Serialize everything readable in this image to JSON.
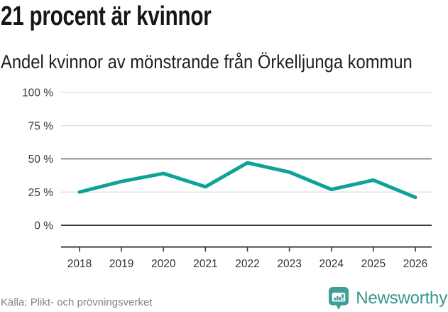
{
  "chart_data": {
    "type": "line",
    "title": "21 procent är kvinnor",
    "subtitle": "Andel kvinnor av mönstrande från Örkelljunga kommun",
    "x": [
      "2018",
      "2019",
      "2020",
      "2021",
      "2022",
      "2023",
      "2024",
      "2025",
      "2026"
    ],
    "series": [
      {
        "name": "Andel kvinnor av mönstrande",
        "values": [
          25,
          33,
          39,
          29,
          47,
          40,
          27,
          34,
          21
        ]
      }
    ],
    "unit": "%",
    "ylim": [
      0,
      100
    ],
    "yticks": [
      {
        "value": 0,
        "label": "0 %"
      },
      {
        "value": 25,
        "label": "25 %"
      },
      {
        "value": 50,
        "label": "50 %"
      },
      {
        "value": 75,
        "label": "75 %"
      },
      {
        "value": 100,
        "label": "100 %"
      }
    ],
    "grid": "horizontal",
    "legend": "none",
    "line_color": "#0fa296"
  },
  "footer": {
    "source": "Källa: Plikt- och prövningsverket",
    "brand": "Newsworthy"
  },
  "colors": {
    "accent_teal": "#0fa296",
    "logo_teal": "#3f9e97",
    "logo_text_teal": "#37968f",
    "grid_light": "#e2e2e2",
    "grid_mid": "#7f7f7f",
    "axis_dark": "#3a3a3a",
    "tick_label": "#333333",
    "title_text": "#161616",
    "muted_text": "#84848e"
  }
}
